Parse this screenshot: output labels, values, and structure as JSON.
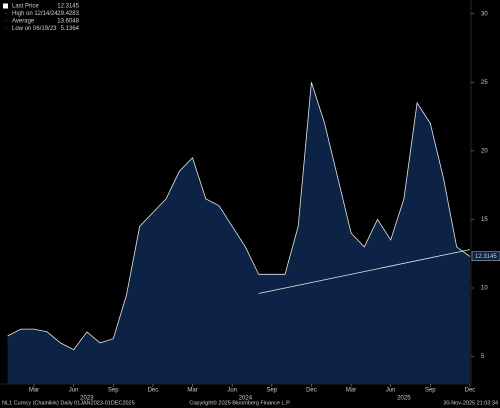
{
  "chart_data": {
    "type": "area",
    "legend": [
      {
        "label": "Last Price",
        "value": 12.3145,
        "color": "#ffffff"
      },
      {
        "label": "High on 12/14/24",
        "value": 29.4283,
        "color": "#ffffff"
      },
      {
        "label": "Average",
        "value": 13.6048,
        "color": "#ffffff"
      },
      {
        "label": "Low on 06/19/23",
        "value": 5.1364,
        "color": "#ffffff"
      }
    ],
    "x": [
      "2023-01",
      "2023-02",
      "2023-03",
      "2023-04",
      "2023-05",
      "2023-06",
      "2023-07",
      "2023-08",
      "2023-09",
      "2023-10",
      "2023-11",
      "2023-12",
      "2024-01",
      "2024-02",
      "2024-03",
      "2024-04",
      "2024-05",
      "2024-06",
      "2024-07",
      "2024-08",
      "2024-09",
      "2024-10",
      "2024-11",
      "2024-12",
      "2025-01",
      "2025-02",
      "2025-03",
      "2025-04",
      "2025-05",
      "2025-06",
      "2025-07",
      "2025-08",
      "2025-09",
      "2025-10",
      "2025-11",
      "2025-12"
    ],
    "series": [
      {
        "name": "NL1 Curncy",
        "color": "#e8e8e8",
        "fill": "#0c2346",
        "values": [
          6.5,
          7.0,
          7.0,
          6.8,
          6.0,
          5.5,
          6.8,
          6.0,
          6.3,
          9.5,
          14.5,
          15.5,
          16.5,
          18.5,
          19.5,
          16.5,
          16.0,
          14.5,
          13.0,
          11.0,
          11.0,
          11.0,
          14.5,
          25.0,
          22.0,
          18.0,
          14.0,
          13.0,
          15.0,
          13.5,
          16.5,
          23.5,
          22.0,
          18.0,
          13.0,
          12.3
        ]
      }
    ],
    "trendline": {
      "x": [
        "2024-08",
        "2025-12"
      ],
      "values": [
        9.6,
        12.8
      ],
      "color": "#e8e8e8"
    },
    "ylim": [
      3,
      31
    ],
    "yticks": [
      5,
      10,
      15,
      20,
      25,
      30
    ],
    "xticks": [
      {
        "value": "2023-03",
        "label": "Mar"
      },
      {
        "value": "2023-06",
        "label": "Jun"
      },
      {
        "value": "2023-09",
        "label": "Sep"
      },
      {
        "value": "2023-12",
        "label": "Dec"
      },
      {
        "value": "2024-03",
        "label": "Mar"
      },
      {
        "value": "2024-06",
        "label": "Jun"
      },
      {
        "value": "2024-09",
        "label": "Sep"
      },
      {
        "value": "2024-12",
        "label": "Dec"
      },
      {
        "value": "2025-03",
        "label": "Mar"
      },
      {
        "value": "2025-06",
        "label": "Jun"
      },
      {
        "value": "2025-09",
        "label": "Sep"
      },
      {
        "value": "2025-12",
        "label": "Dec"
      }
    ],
    "year_labels": [
      {
        "value": "2023-07",
        "label": "2023"
      },
      {
        "value": "2024-07",
        "label": "2024"
      },
      {
        "value": "2025-07",
        "label": "2025"
      }
    ],
    "footer": [
      "NL1 Curncy (Chainlink) Daily 01JAN2023-01DEC2025",
      "Copyright© 2025 Bloomberg Finance L.P.",
      "30-Nov-2025 21:03:34"
    ]
  }
}
